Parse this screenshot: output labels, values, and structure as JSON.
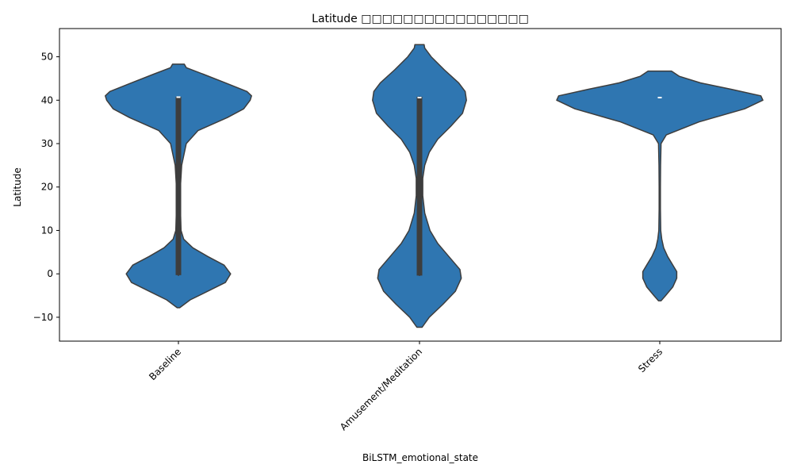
{
  "chart_data": {
    "type": "violin",
    "title": "Latitude □□□□□□□□□□□□□□□□",
    "xlabel": "BiLSTM_emotional_state",
    "ylabel": "Latitude",
    "categories": [
      "Baseline",
      "Amusement/Meditation",
      "Stress"
    ],
    "ylim": [
      -15.5,
      56.5
    ],
    "yticks": [
      -10,
      0,
      10,
      20,
      30,
      40,
      50
    ],
    "grid": false,
    "legend": "none",
    "colors": {
      "fill": "#2f76b1",
      "edge": "#3d3d3d",
      "box": "#3d3d3d",
      "median": "#ffffff"
    },
    "series": [
      {
        "category": "Baseline",
        "y_range": [
          -7.8,
          48.3
        ],
        "median": 40.7,
        "q1": -0.3,
        "q3": 40.8,
        "whisker": [
          -0.5,
          40.9
        ],
        "density": [
          [
            -7.8,
            0.02
          ],
          [
            -6.0,
            0.18
          ],
          [
            -4.0,
            0.45
          ],
          [
            -2.0,
            0.72
          ],
          [
            0.0,
            0.8
          ],
          [
            2.0,
            0.7
          ],
          [
            4.0,
            0.45
          ],
          [
            6.0,
            0.22
          ],
          [
            8.0,
            0.08
          ],
          [
            10.0,
            0.04
          ],
          [
            15.0,
            0.03
          ],
          [
            20.0,
            0.03
          ],
          [
            25.0,
            0.05
          ],
          [
            30.0,
            0.12
          ],
          [
            33.0,
            0.3
          ],
          [
            36.0,
            0.75
          ],
          [
            38.0,
            1.0
          ],
          [
            40.0,
            1.1
          ],
          [
            41.0,
            1.12
          ],
          [
            42.0,
            1.05
          ],
          [
            44.0,
            0.72
          ],
          [
            46.0,
            0.38
          ],
          [
            47.5,
            0.12
          ],
          [
            48.3,
            0.09
          ]
        ]
      },
      {
        "category": "Amusement/Meditation",
        "y_range": [
          -12.3,
          52.8
        ],
        "median": 40.6,
        "q1": -0.4,
        "q3": 40.8,
        "whisker": [
          -0.5,
          40.9
        ],
        "density": [
          [
            -12.3,
            0.04
          ],
          [
            -10.0,
            0.15
          ],
          [
            -7.0,
            0.36
          ],
          [
            -4.0,
            0.55
          ],
          [
            -1.0,
            0.64
          ],
          [
            1.0,
            0.62
          ],
          [
            4.0,
            0.45
          ],
          [
            7.0,
            0.28
          ],
          [
            10.0,
            0.16
          ],
          [
            14.0,
            0.08
          ],
          [
            18.0,
            0.05
          ],
          [
            22.0,
            0.05
          ],
          [
            25.0,
            0.08
          ],
          [
            28.0,
            0.15
          ],
          [
            31.0,
            0.28
          ],
          [
            34.0,
            0.48
          ],
          [
            37.0,
            0.66
          ],
          [
            40.0,
            0.72
          ],
          [
            42.0,
            0.7
          ],
          [
            44.0,
            0.6
          ],
          [
            47.0,
            0.38
          ],
          [
            50.0,
            0.18
          ],
          [
            52.0,
            0.08
          ],
          [
            52.8,
            0.07
          ]
        ]
      },
      {
        "category": "Stress",
        "y_range": [
          -6.2,
          46.7
        ],
        "median": 40.6,
        "q1": 40.6,
        "q3": 40.6,
        "whisker": [
          40.6,
          40.6
        ],
        "density": [
          [
            -6.2,
            0.02
          ],
          [
            -5.0,
            0.09
          ],
          [
            -3.0,
            0.2
          ],
          [
            -1.0,
            0.26
          ],
          [
            0.5,
            0.26
          ],
          [
            2.0,
            0.2
          ],
          [
            4.0,
            0.12
          ],
          [
            6.0,
            0.06
          ],
          [
            8.0,
            0.03
          ],
          [
            10.0,
            0.015
          ],
          [
            15.0,
            0.01
          ],
          [
            20.0,
            0.01
          ],
          [
            25.0,
            0.012
          ],
          [
            30.0,
            0.02
          ],
          [
            32.0,
            0.1
          ],
          [
            35.0,
            0.6
          ],
          [
            38.0,
            1.3
          ],
          [
            40.0,
            1.58
          ],
          [
            41.0,
            1.55
          ],
          [
            42.5,
            1.1
          ],
          [
            44.0,
            0.62
          ],
          [
            45.5,
            0.3
          ],
          [
            46.7,
            0.18
          ]
        ]
      }
    ]
  }
}
